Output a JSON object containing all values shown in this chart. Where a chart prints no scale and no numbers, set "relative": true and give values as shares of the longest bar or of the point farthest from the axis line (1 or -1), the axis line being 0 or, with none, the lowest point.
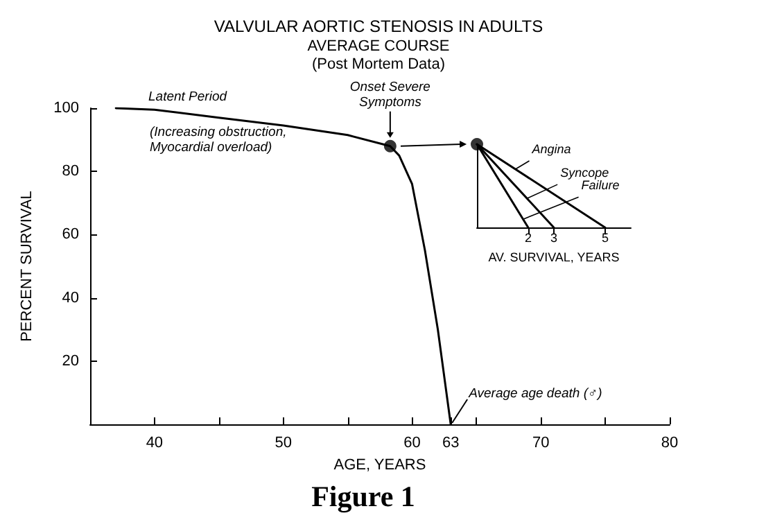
{
  "chart_data": [
    {
      "type": "line",
      "title": "VALVULAR AORTIC STENOSIS IN ADULTS",
      "subtitle": "AVERAGE COURSE\n(Post Mortem Data)",
      "xlabel": "AGE, YEARS",
      "ylabel": "PERCENT SURVIVAL",
      "xlim": [
        35,
        80
      ],
      "xticks": [
        40,
        {
          "value": 45,
          "label": null
        },
        50,
        {
          "value": 55,
          "label": null
        },
        60,
        63,
        {
          "value": 65,
          "label": null
        },
        70,
        {
          "value": 75,
          "label": null
        },
        80
      ],
      "ylim": [
        0,
        100
      ],
      "yticks": [
        20,
        40,
        60,
        80,
        100
      ],
      "grid": false,
      "legend": false,
      "line_style": "solid",
      "series": [
        {
          "x": [
            37,
            40,
            45,
            50,
            55,
            58.3,
            59,
            60,
            61,
            62,
            63
          ],
          "values": [
            100,
            99.5,
            97,
            94.5,
            91.5,
            88,
            85,
            76,
            55,
            30,
            0
          ],
          "color": "#000000",
          "marker": "none"
        },
        {
          "type": "scatter",
          "x": [
            58.3
          ],
          "values": [
            88
          ],
          "color": "#000000",
          "marker": "circle"
        }
      ],
      "annotations": [
        "Latent Period",
        "(Increasing obstruction,\nMyocardial overload)",
        {
          "text": "Onset Severe\nSymptoms",
          "x": 58.3,
          "y": 88
        },
        {
          "text": "Average age death (♂)",
          "x": 63,
          "y": 0
        },
        "Figure 1"
      ]
    },
    {
      "type": "line",
      "relative": true,
      "xlabel": "AV. SURVIVAL, YEARS",
      "xlim": [
        0,
        6
      ],
      "xticks": [
        2,
        3,
        5
      ],
      "tick_labels": "x",
      "grid": false,
      "legend": false,
      "line_style": "solid",
      "series": [
        {
          "name": "Angina",
          "x": [
            0,
            5
          ],
          "values": [
            1,
            0
          ],
          "color": "#000000",
          "marker": "none"
        },
        {
          "name": "Syncope",
          "x": [
            0,
            3
          ],
          "values": [
            1,
            0
          ],
          "color": "#000000",
          "marker": "none"
        },
        {
          "name": "Failure",
          "x": [
            0,
            2
          ],
          "values": [
            1,
            0
          ],
          "color": "#000000",
          "marker": "none"
        },
        {
          "type": "scatter",
          "x": [
            0
          ],
          "values": [
            1
          ],
          "color": "#000000",
          "marker": "circle"
        }
      ]
    }
  ]
}
